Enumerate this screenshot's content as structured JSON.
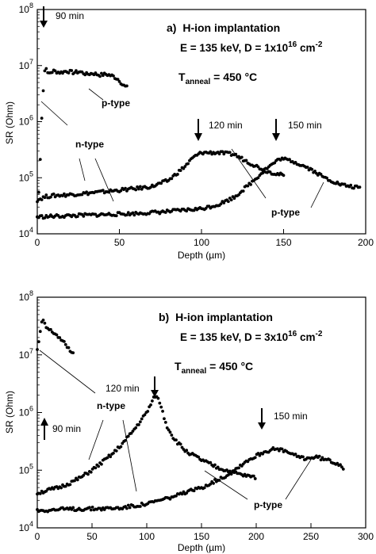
{
  "chart_data": [
    {
      "type": "scatter",
      "panel_label": "a)",
      "title": "H-ion implantation",
      "subtitle_prefix": "E = 135 keV, D = 1x10",
      "subtitle_exp": "16",
      "subtitle_unit": " cm",
      "subtitle_unit_exp": "-2",
      "anneal_prefix": "T",
      "anneal_sub": "anneal",
      "anneal_suffix": " = 450 °C",
      "xlabel": "Depth (µm)",
      "ylabel": "SR (Ohm)",
      "xlim": [
        0,
        200
      ],
      "ylim_log10": [
        4,
        8
      ],
      "y_scale": "log",
      "xticks": [
        "0",
        "50",
        "100",
        "150",
        "200"
      ],
      "yticks": [
        {
          "base": "10",
          "exp": "4"
        },
        {
          "base": "10",
          "exp": "5"
        },
        {
          "base": "10",
          "exp": "6"
        },
        {
          "base": "10",
          "exp": "7"
        },
        {
          "base": "10",
          "exp": "8"
        }
      ],
      "grid": false,
      "series": [
        {
          "label_text": "90 min",
          "x_range": [
            0,
            55
          ],
          "points": [
            [
              0,
              20000.0
            ],
            [
              1,
              60000.0
            ],
            [
              2,
              300000.0
            ],
            [
              3,
              2000000.0
            ],
            [
              4,
              5000000.0
            ],
            [
              5,
              12000000.0
            ],
            [
              6,
              7000000.0
            ],
            [
              8,
              7500000.0
            ],
            [
              10,
              8000000.0
            ],
            [
              14,
              7500000.0
            ],
            [
              18,
              8000000.0
            ],
            [
              22,
              7500000.0
            ],
            [
              26,
              7800000.0
            ],
            [
              30,
              7000000.0
            ],
            [
              34,
              7300000.0
            ],
            [
              38,
              6800000.0
            ],
            [
              42,
              7000000.0
            ],
            [
              46,
              6500000.0
            ],
            [
              48,
              6000000.0
            ],
            [
              50,
              5500000.0
            ],
            [
              52,
              4500000.0
            ],
            [
              55,
              4000000.0
            ]
          ]
        },
        {
          "label_text": "120 min",
          "x_range": [
            0,
            150
          ],
          "points": [
            [
              0,
              40000.0
            ],
            [
              5,
              46000.0
            ],
            [
              10,
              48000.0
            ],
            [
              20,
              50000.0
            ],
            [
              30,
              53000.0
            ],
            [
              40,
              56000.0
            ],
            [
              50,
              60000.0
            ],
            [
              60,
              64000.0
            ],
            [
              70,
              70000.0
            ],
            [
              80,
              90000.0
            ],
            [
              90,
              160000.0
            ],
            [
              95,
              230000.0
            ],
            [
              100,
              280000.0
            ],
            [
              110,
              280000.0
            ],
            [
              120,
              260000.0
            ],
            [
              130,
              180000.0
            ],
            [
              140,
              130000.0
            ],
            [
              150,
              110000.0
            ]
          ]
        },
        {
          "label_text": "150 min",
          "x_range": [
            0,
            197
          ],
          "points": [
            [
              0,
              20000.0
            ],
            [
              20,
              21000.0
            ],
            [
              40,
              22000.0
            ],
            [
              60,
              23000.0
            ],
            [
              80,
              25000.0
            ],
            [
              100,
              28000.0
            ],
            [
              110,
              33000.0
            ],
            [
              120,
              45000.0
            ],
            [
              130,
              80000.0
            ],
            [
              140,
              150000.0
            ],
            [
              148,
              220000.0
            ],
            [
              155,
              200000.0
            ],
            [
              165,
              150000.0
            ],
            [
              175,
              100000.0
            ],
            [
              185,
              75000.0
            ],
            [
              197,
              65000.0
            ]
          ]
        }
      ],
      "annotations": [
        {
          "text": "90 min"
        },
        {
          "text": "120 min"
        },
        {
          "text": "150 min"
        },
        {
          "text": "p-type"
        },
        {
          "text": "n-type"
        },
        {
          "text": "p-type"
        }
      ]
    },
    {
      "type": "scatter",
      "panel_label": "b)",
      "title": "H-ion implantation",
      "subtitle_prefix": "E = 135 keV, D = 3x10",
      "subtitle_exp": "16",
      "subtitle_unit": " cm",
      "subtitle_unit_exp": "-2",
      "anneal_prefix": "T",
      "anneal_sub": "anneal",
      "anneal_suffix": " = 450 °C",
      "xlabel": "Depth (µm)",
      "ylabel": "SR (Ohm)",
      "xlim": [
        0,
        300
      ],
      "ylim_log10": [
        4,
        8
      ],
      "y_scale": "log",
      "xticks": [
        "0",
        "50",
        "100",
        "150",
        "200",
        "250",
        "300"
      ],
      "yticks": [
        {
          "base": "10",
          "exp": "4"
        },
        {
          "base": "10",
          "exp": "5"
        },
        {
          "base": "10",
          "exp": "6"
        },
        {
          "base": "10",
          "exp": "7"
        },
        {
          "base": "10",
          "exp": "8"
        }
      ],
      "grid": false,
      "series": [
        {
          "label_text": "90 min",
          "x_range": [
            0,
            33
          ],
          "points": [
            [
              0,
              12000000.0
            ],
            [
              2,
              20000000.0
            ],
            [
              4,
              35000000.0
            ],
            [
              6,
              40000000.0
            ],
            [
              8,
              30000000.0
            ],
            [
              10,
              28000000.0
            ],
            [
              14,
              25000000.0
            ],
            [
              18,
              22000000.0
            ],
            [
              22,
              18000000.0
            ],
            [
              26,
              15000000.0
            ],
            [
              30,
              12000000.0
            ],
            [
              33,
              11000000.0
            ]
          ]
        },
        {
          "label_text": "120 min",
          "x_range": [
            0,
            200
          ],
          "points": [
            [
              0,
              40000.0
            ],
            [
              10,
              45000.0
            ],
            [
              20,
              50000.0
            ],
            [
              30,
              60000.0
            ],
            [
              40,
              75000.0
            ],
            [
              50,
              100000.0
            ],
            [
              60,
              140000.0
            ],
            [
              70,
              200000.0
            ],
            [
              80,
              320000.0
            ],
            [
              90,
              550000.0
            ],
            [
              100,
              1000000.0
            ],
            [
              108,
              2000000.0
            ],
            [
              112,
              1500000.0
            ],
            [
              118,
              600000.0
            ],
            [
              125,
              350000.0
            ],
            [
              135,
              220000.0
            ],
            [
              150,
              150000.0
            ],
            [
              165,
              110000.0
            ],
            [
              180,
              90000.0
            ],
            [
              190,
              80000.0
            ],
            [
              200,
              75000.0
            ]
          ]
        },
        {
          "label_text": "150 min",
          "x_range": [
            0,
            280
          ],
          "points": [
            [
              0,
              20000.0
            ],
            [
              25,
              21000.0
            ],
            [
              50,
              21500.0
            ],
            [
              75,
              22000.0
            ],
            [
              100,
              26000.0
            ],
            [
              125,
              35000.0
            ],
            [
              150,
              50000.0
            ],
            [
              175,
              85000.0
            ],
            [
              190,
              140000.0
            ],
            [
              205,
              200000.0
            ],
            [
              215,
              230000.0
            ],
            [
              225,
              220000.0
            ],
            [
              235,
              180000.0
            ],
            [
              245,
              160000.0
            ],
            [
              255,
              170000.0
            ],
            [
              265,
              150000.0
            ],
            [
              275,
              130000.0
            ],
            [
              280,
              110000.0
            ]
          ]
        }
      ],
      "annotations": [
        {
          "text": "90 min"
        },
        {
          "text": "120 min"
        },
        {
          "text": "150 min"
        },
        {
          "text": "n-type"
        },
        {
          "text": "p-type"
        }
      ]
    }
  ]
}
